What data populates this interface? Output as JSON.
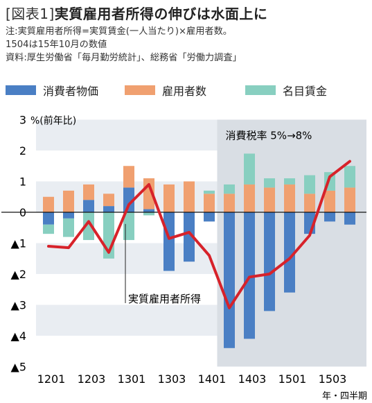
{
  "header": {
    "tag": "[図表1]",
    "title": "実質雇用者所得の伸びは水面上に",
    "note1": "注:実質雇用者所得=実質賃金(一人当たり)×雇用者数。",
    "note2": "1504は15年10月の数値",
    "note3": "資料:厚生労働省「毎月勤労統計」、総務省「労働力調査」"
  },
  "colors": {
    "consumer_prices": "#4a7fc4",
    "employees": "#f0a070",
    "nominal_wage": "#88cfc0",
    "real_income": "#d7222a",
    "band": "#e9edf2",
    "shade": "#d9dee4"
  },
  "chart_data": {
    "type": "bar",
    "stacked": true,
    "y_unit_label": "%(前年比)",
    "x_unit_label": "年・四半期",
    "ylim": [
      -5,
      3
    ],
    "y_ticks": [
      {
        "value": 3,
        "label": "3"
      },
      {
        "value": 2,
        "label": "2"
      },
      {
        "value": 1,
        "label": "1"
      },
      {
        "value": 0,
        "label": "0"
      },
      {
        "value": -1,
        "label": "▲1"
      },
      {
        "value": -2,
        "label": "▲2"
      },
      {
        "value": -3,
        "label": "▲3"
      },
      {
        "value": -4,
        "label": "▲4"
      },
      {
        "value": -5,
        "label": "▲5"
      }
    ],
    "x_tick_labels": [
      "1201",
      "1203",
      "1301",
      "1303",
      "1401",
      "1403",
      "1501",
      "1503"
    ],
    "categories": [
      "1201",
      "1202",
      "1203",
      "1204",
      "1301",
      "1302",
      "1303",
      "1304",
      "1401",
      "1402",
      "1403",
      "1404",
      "1501",
      "1502",
      "1503",
      "1504"
    ],
    "series": [
      {
        "name": "消費者物価",
        "key": "consumer_prices",
        "values": [
          -0.4,
          -0.2,
          0.4,
          0.2,
          0.8,
          0.1,
          -1.9,
          -1.6,
          -0.3,
          -4.4,
          -4.1,
          -3.2,
          -2.6,
          -0.7,
          -0.3,
          -0.4
        ]
      },
      {
        "name": "雇用者数",
        "key": "employees",
        "values": [
          0.5,
          0.7,
          0.5,
          0.4,
          0.7,
          1.0,
          0.9,
          1.0,
          0.6,
          0.6,
          0.9,
          0.8,
          0.9,
          0.6,
          0.7,
          0.8
        ]
      },
      {
        "name": "名目賃金",
        "key": "nominal_wage",
        "values": [
          -0.3,
          -0.6,
          -0.9,
          -1.5,
          -0.9,
          -0.1,
          0.0,
          0.0,
          0.1,
          0.3,
          1.0,
          0.3,
          0.2,
          0.6,
          0.6,
          0.7
        ]
      }
    ],
    "line_series": {
      "name": "実質雇用者所得",
      "values": [
        -1.1,
        -1.15,
        -0.3,
        -1.3,
        0.25,
        0.9,
        -0.85,
        -0.65,
        -1.4,
        -3.1,
        -2.1,
        -2.0,
        -1.5,
        -0.75,
        1.15,
        1.65
      ]
    },
    "annotations": {
      "shaded_region_label": "消費税率 5%→8%",
      "shaded_from_index": 9,
      "line_callout": "実質雇用者所得",
      "line_callout_index": 4
    }
  }
}
